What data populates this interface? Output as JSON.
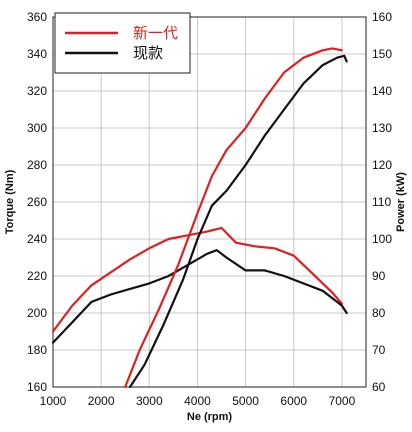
{
  "chart_data": {
    "type": "line",
    "title": "",
    "xlabel": "Ne (rpm)",
    "ylabel_left": "Torque (Nm)",
    "ylabel_right": "Power (kW)",
    "xlim": [
      1000,
      7500
    ],
    "ylim_left": [
      160,
      360
    ],
    "ylim_right": [
      60,
      160
    ],
    "x_ticks": [
      1000,
      2000,
      3000,
      4000,
      5000,
      6000,
      7000
    ],
    "y_left_ticks": [
      160,
      180,
      200,
      220,
      240,
      260,
      280,
      300,
      320,
      340,
      360
    ],
    "y_right_ticks": [
      60,
      70,
      80,
      90,
      100,
      110,
      120,
      130,
      140,
      150,
      160
    ],
    "grid": true,
    "legend_position": "top-left",
    "series": [
      {
        "name": "新一代",
        "axis": "left",
        "quantity": "torque",
        "color": "#e02020",
        "x": [
          1000,
          1400,
          1800,
          2200,
          2600,
          3000,
          3400,
          3800,
          4200,
          4500,
          4800,
          5200,
          5600,
          6000,
          6400,
          6800,
          7000
        ],
        "y": [
          190,
          204,
          215,
          222,
          229,
          235,
          240,
          242,
          244,
          246,
          238,
          236,
          235,
          231,
          221,
          211,
          205
        ]
      },
      {
        "name": "现款",
        "axis": "left",
        "quantity": "torque",
        "color": "#111111",
        "x": [
          1000,
          1400,
          1800,
          2200,
          2600,
          3000,
          3400,
          3800,
          4200,
          4400,
          4600,
          5000,
          5400,
          5800,
          6200,
          6600,
          7000,
          7100
        ],
        "y": [
          184,
          195,
          206,
          210,
          213,
          216,
          220,
          226,
          232,
          234,
          230,
          223,
          223,
          220,
          216,
          212,
          204,
          200
        ]
      },
      {
        "name": "新一代",
        "axis": "right",
        "quantity": "power",
        "color": "#e02020",
        "x": [
          2500,
          2800,
          3200,
          3600,
          4000,
          4300,
          4600,
          5000,
          5400,
          5800,
          6200,
          6600,
          6800,
          7000
        ],
        "y": [
          60,
          70,
          81,
          93,
          107,
          117,
          124,
          130,
          138,
          145,
          149,
          151,
          151.5,
          151
        ]
      },
      {
        "name": "现款",
        "axis": "right",
        "quantity": "power",
        "color": "#111111",
        "x": [
          2600,
          2900,
          3300,
          3700,
          4000,
          4300,
          4600,
          5000,
          5400,
          5800,
          6200,
          6600,
          6900,
          7050,
          7100
        ],
        "y": [
          60,
          66,
          77,
          89,
          100,
          109,
          113,
          120,
          128,
          135,
          142,
          147,
          149,
          149.5,
          148
        ]
      }
    ]
  }
}
